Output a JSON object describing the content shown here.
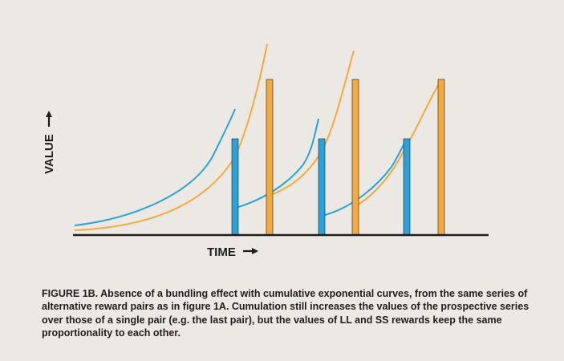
{
  "axes": {
    "y_label": "VALUE",
    "x_label": "TIME"
  },
  "caption": "FIGURE 1B. Absence of a bundling effect with cumulative exponential curves, from the same series of alternative reward pairs as in figure 1A.  Cumulation still increases the values of the prospective series over those of a single pair (e.g. the last pair), but the values of LL and SS rewards keep the same proportionality to each other.",
  "colors": {
    "background": "#ece9e4",
    "ss_color": "#29a3dc",
    "ll_color": "#f5a93b",
    "axis": "#1e1e1e"
  },
  "chart_data": {
    "type": "diagram",
    "description_series": [
      {
        "name": "SS",
        "reward_value": 0.6,
        "count": 3
      },
      {
        "name": "LL",
        "reward_value": 1.0,
        "count": 3
      }
    ],
    "pairs": 3
  }
}
